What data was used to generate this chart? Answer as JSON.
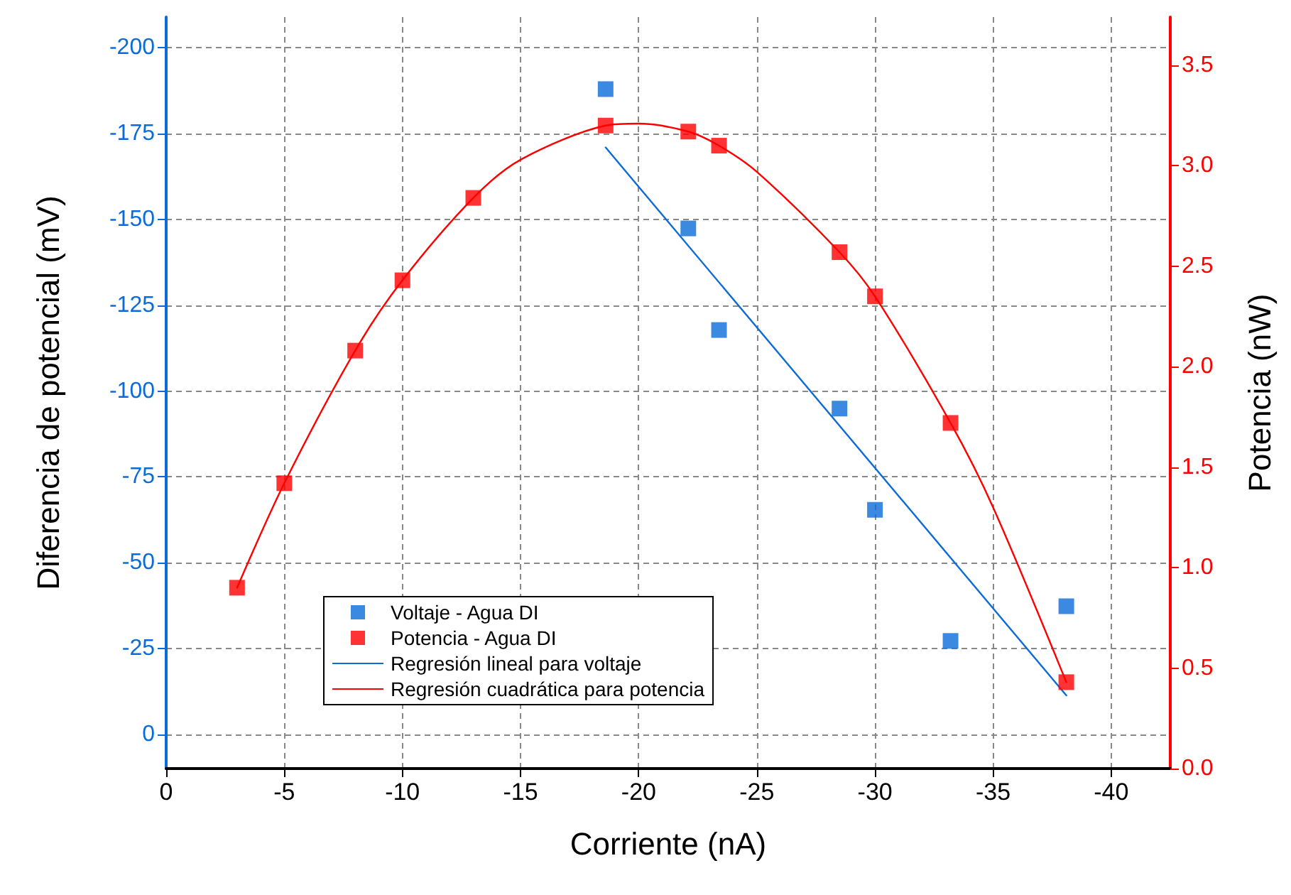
{
  "chart_data": {
    "type": "scatter",
    "xlabel": "Corriente (nA)",
    "ylabel": "Diferencia de potencial (mV)",
    "y2label": "Potencia (nW)",
    "xlim": [
      0,
      -42.5
    ],
    "xticks": [
      0,
      -5,
      -10,
      -15,
      -20,
      -25,
      -30,
      -35,
      -40
    ],
    "ylim": [
      10,
      -209
    ],
    "yticks": [
      0,
      -25,
      -50,
      -75,
      -100,
      -125,
      -150,
      -175,
      -200
    ],
    "y2lim": [
      0,
      3.74
    ],
    "y2ticks": [
      {
        "value": 0,
        "label": "0.0"
      },
      0.5,
      {
        "value": 1,
        "label": "1.0"
      },
      1.5,
      {
        "value": 2,
        "label": "2.0"
      },
      2.5,
      {
        "value": 3,
        "label": "3.0"
      },
      3.5
    ],
    "grid": true,
    "legend": "bottom left",
    "marker": "square",
    "series": [
      {
        "name": "Voltaje - Agua DI",
        "color": "#0b6bd9",
        "x": [
          -18.6,
          -22.1,
          -23.4,
          -28.5,
          -30.0,
          -33.2,
          -38.1
        ],
        "values": [
          -188.0,
          -147.4,
          -117.8,
          -94.9,
          -65.4,
          -27.2,
          -37.3
        ]
      },
      {
        "name": "Potencia - Agua DI",
        "axis": "y2",
        "color": "#ff0000",
        "x": [
          -3.0,
          -5.0,
          -8.0,
          -10.0,
          -13.0,
          -18.6,
          -22.1,
          -23.4,
          -28.5,
          -30.0,
          -33.2,
          -38.1
        ],
        "values": [
          0.9,
          1.42,
          2.08,
          2.43,
          2.84,
          3.2,
          3.17,
          3.1,
          2.57,
          2.35,
          1.72,
          0.43
        ]
      },
      {
        "name": "Regresión lineal para voltaje",
        "type": "line",
        "marker": "none",
        "color": "#0b6bd9",
        "x": [
          -18.6,
          -38.1
        ],
        "values": [
          -171,
          -11.3
        ]
      },
      {
        "name": "Regresión cuadrática para potencia",
        "type": "line",
        "marker": "none",
        "axis": "y2",
        "color": "#ff0000",
        "x": [
          -3.0,
          -5.0,
          -8.0,
          -10.0,
          -13.0,
          -15.0,
          -18.6,
          -20.0,
          -22.1,
          -23.4,
          -25.0,
          -28.5,
          -30.0,
          -33.2,
          -35.0,
          -38.1
        ],
        "values": [
          0.9,
          1.42,
          2.08,
          2.43,
          2.84,
          3.03,
          3.2,
          3.21,
          3.17,
          3.1,
          2.97,
          2.57,
          2.35,
          1.72,
          1.3,
          0.43
        ]
      }
    ]
  }
}
